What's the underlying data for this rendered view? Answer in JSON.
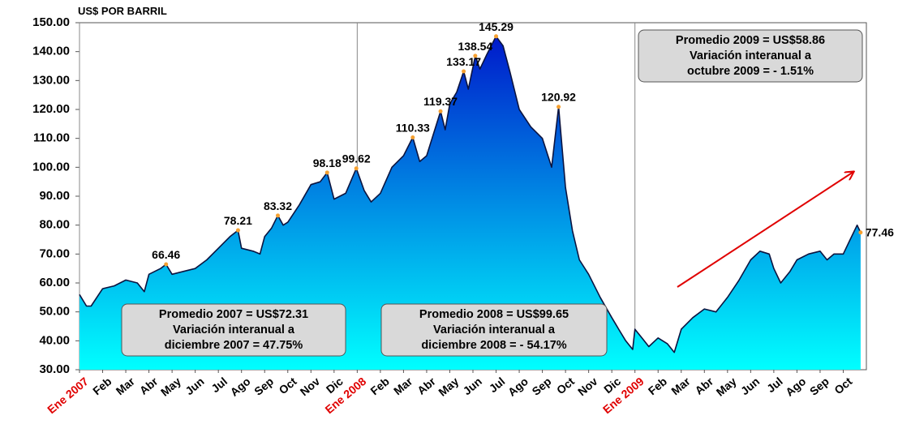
{
  "chart_data": {
    "type": "area",
    "y_label": "US$ POR BARRIL",
    "x": [
      0,
      0.3,
      0.5,
      1,
      1.5,
      2,
      2.5,
      2.8,
      3,
      3.5,
      3.74,
      4,
      4.5,
      5,
      5.5,
      6,
      6.5,
      6.85,
      7,
      7.5,
      7.8,
      8,
      8.3,
      8.57,
      8.8,
      9,
      9.5,
      10,
      10.4,
      10.7,
      11,
      11.5,
      11.96,
      12.3,
      12.6,
      13,
      13.5,
      14,
      14.4,
      14.7,
      15,
      15.6,
      15.8,
      16,
      16.3,
      16.6,
      16.8,
      17.1,
      17.3,
      17.6,
      18,
      18.3,
      18.6,
      19,
      19.5,
      20,
      20.4,
      20.7,
      21,
      21.3,
      21.6,
      22,
      22.5,
      23,
      23.3,
      23.6,
      23.9,
      24,
      24.3,
      24.6,
      25,
      25.4,
      25.7,
      26,
      26.5,
      27,
      27.5,
      28,
      28.5,
      29,
      29.4,
      29.8,
      30,
      30.3,
      30.7,
      31,
      31.5,
      32,
      32.3,
      32.6,
      33,
      33.3,
      33.6,
      33.75
    ],
    "values": [
      56,
      52,
      52,
      58,
      59,
      61,
      60,
      57,
      63,
      65,
      66.46,
      63,
      64,
      65,
      68,
      72,
      76,
      78.21,
      72,
      71,
      70,
      76,
      79,
      83.32,
      80,
      81,
      87,
      94,
      95,
      98.18,
      89,
      91,
      99.62,
      92,
      88,
      91,
      100,
      104,
      110.33,
      102,
      104,
      119.37,
      113,
      122,
      126,
      133.17,
      127,
      138.54,
      134,
      139,
      145.29,
      142,
      133,
      120,
      114,
      110,
      100,
      120.92,
      93,
      78,
      68,
      63,
      55,
      48,
      44,
      40,
      37,
      44,
      41,
      38,
      41,
      39,
      36,
      44,
      48,
      51,
      50,
      55,
      61,
      68,
      71,
      70,
      65,
      60,
      64,
      68,
      70,
      71,
      68,
      70,
      70,
      75,
      80,
      77.46
    ],
    "value_labels": [
      null,
      null,
      null,
      null,
      null,
      null,
      null,
      null,
      null,
      null,
      "66.46",
      null,
      null,
      null,
      null,
      null,
      null,
      "78.21",
      null,
      null,
      null,
      null,
      null,
      "83.32",
      null,
      null,
      null,
      null,
      null,
      "98.18",
      null,
      null,
      "99.62",
      null,
      null,
      null,
      null,
      null,
      "110.33",
      null,
      null,
      "119.37",
      null,
      null,
      null,
      "133.17",
      null,
      "138.54",
      null,
      null,
      "145.29",
      null,
      null,
      null,
      null,
      null,
      null,
      "120.92",
      null,
      null,
      null,
      null,
      null,
      null,
      null,
      null,
      null,
      null,
      null,
      null,
      null,
      null,
      null,
      null,
      null,
      null,
      null,
      null,
      null,
      null,
      null,
      null,
      null,
      null,
      null,
      null,
      null,
      null,
      null,
      null,
      null,
      null,
      null,
      "77.46"
    ],
    "color": "#0b1440",
    "area_colors": [
      "#0010c8",
      "#00ffff"
    ],
    "marker_color": "#f5a030",
    "xlim": [
      0,
      34
    ],
    "ylim": [
      30,
      150
    ],
    "yticks": [
      {
        "value": 30,
        "label": "30.00"
      },
      {
        "value": 40,
        "label": "40.00"
      },
      {
        "value": 50,
        "label": "50.00"
      },
      {
        "value": 60,
        "label": "60.00"
      },
      {
        "value": 70,
        "label": "70.00"
      },
      {
        "value": 80,
        "label": "80.00"
      },
      {
        "value": 90,
        "label": "90.00"
      },
      {
        "value": 100,
        "label": "100.00"
      },
      {
        "value": 110,
        "label": "110.00"
      },
      {
        "value": 120,
        "label": "120.00"
      },
      {
        "value": 130,
        "label": "130.00"
      },
      {
        "value": 140,
        "label": "140.00"
      },
      {
        "value": 150,
        "label": "150.00"
      }
    ],
    "xticks": [
      {
        "value": 0,
        "label": "Ene 2007",
        "color": "#e00000"
      },
      {
        "value": 1,
        "label": "Feb"
      },
      {
        "value": 2,
        "label": "Mar"
      },
      {
        "value": 3,
        "label": "Abr"
      },
      {
        "value": 4,
        "label": "May"
      },
      {
        "value": 5,
        "label": "Jun"
      },
      {
        "value": 6,
        "label": "Jul"
      },
      {
        "value": 7,
        "label": "Ago"
      },
      {
        "value": 8,
        "label": "Sep"
      },
      {
        "value": 9,
        "label": "Oct"
      },
      {
        "value": 10,
        "label": "Nov"
      },
      {
        "value": 11,
        "label": "Dic"
      },
      {
        "value": 12,
        "label": "Ene 2008",
        "color": "#e00000"
      },
      {
        "value": 13,
        "label": "Feb"
      },
      {
        "value": 14,
        "label": "Mar"
      },
      {
        "value": 15,
        "label": "Abr"
      },
      {
        "value": 16,
        "label": "May"
      },
      {
        "value": 17,
        "label": "Jun"
      },
      {
        "value": 18,
        "label": "Jul"
      },
      {
        "value": 19,
        "label": "Ago"
      },
      {
        "value": 20,
        "label": "Sep"
      },
      {
        "value": 21,
        "label": "Oct"
      },
      {
        "value": 22,
        "label": "Nov"
      },
      {
        "value": 23,
        "label": "Dic"
      },
      {
        "value": 24,
        "label": "Ene 2009",
        "color": "#e00000"
      },
      {
        "value": 25,
        "label": "Feb"
      },
      {
        "value": 26,
        "label": "Mar"
      },
      {
        "value": 27,
        "label": "Abr"
      },
      {
        "value": 28,
        "label": "May"
      },
      {
        "value": 29,
        "label": "Jun"
      },
      {
        "value": 30,
        "label": "Jul"
      },
      {
        "value": 31,
        "label": "Ago"
      },
      {
        "value": 32,
        "label": "Sep"
      },
      {
        "value": 33,
        "label": "Oct"
      }
    ],
    "annotations": [
      {
        "lines": [
          "Promedio 2007 = US$72.31",
          "Variación interanual a",
          "diciembre 2007 = 47.75%"
        ]
      },
      {
        "lines": [
          "Promedio 2008 = US$99.65",
          "Variación interanual a",
          "diciembre 2008 = - 54.17%"
        ]
      },
      {
        "lines": [
          "Promedio 2009 = US$58.86",
          "Variación interanual a",
          "octubre 2009 = - 1.51%"
        ]
      }
    ]
  }
}
